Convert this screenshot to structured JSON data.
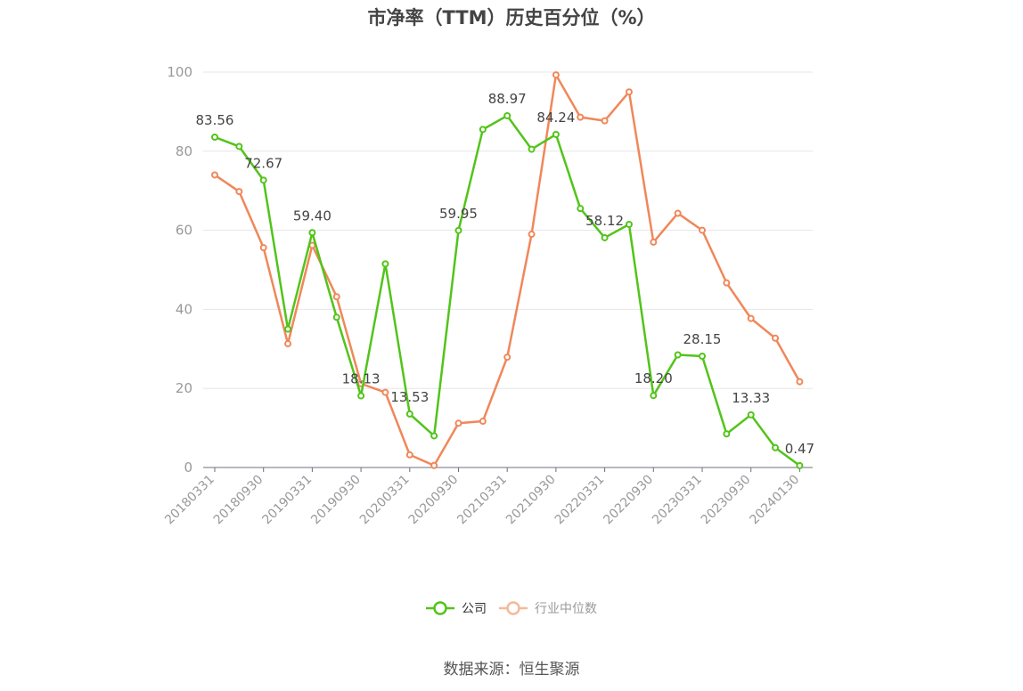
{
  "source": "数据来源：恒生聚源",
  "colors": {
    "company": "#52c41a",
    "industry": "#f0875a"
  },
  "chart_data": {
    "type": "line",
    "title": "市净率（TTM）历史百分位（%）",
    "ylim": [
      0,
      100
    ],
    "yticks": [
      0,
      20,
      40,
      60,
      80,
      100
    ],
    "grid": true,
    "legend_position": "bottom",
    "x_tick_labels": [
      "20180331",
      "20180930",
      "20190331",
      "20190930",
      "20200331",
      "20200930",
      "20210331",
      "20210930",
      "20220331",
      "20220930",
      "20230331",
      "20230930",
      "20240130"
    ],
    "x": [
      "20180331",
      "20180630",
      "20180930",
      "20181231",
      "20190331",
      "20190630",
      "20190930",
      "20191231",
      "20200331",
      "20200630",
      "20200930",
      "20201231",
      "20210331",
      "20210630",
      "20210930",
      "20211231",
      "20220331",
      "20220630",
      "20220930",
      "20221231",
      "20230331",
      "20230630",
      "20230930",
      "20231231",
      "20240130"
    ],
    "series": [
      {
        "name": "公司",
        "values": [
          83.56,
          81.2,
          72.67,
          35.0,
          59.4,
          38.0,
          18.13,
          51.5,
          13.53,
          8.0,
          59.95,
          85.5,
          88.97,
          80.5,
          84.24,
          65.5,
          58.12,
          61.5,
          18.2,
          28.5,
          28.15,
          8.5,
          13.33,
          5.0,
          0.47
        ],
        "labels": [
          "83.56",
          null,
          "72.67",
          null,
          "59.40",
          null,
          "18.13",
          null,
          "13.53",
          null,
          "59.95",
          null,
          "88.97",
          null,
          "84.24",
          null,
          "58.12",
          null,
          "18.20",
          null,
          "28.15",
          null,
          "13.33",
          null,
          "0.47"
        ]
      },
      {
        "name": "行业中位数",
        "values": [
          74.0,
          69.8,
          55.6,
          31.3,
          56.2,
          43.2,
          21.2,
          19.0,
          3.2,
          0.5,
          11.2,
          11.7,
          27.9,
          59.0,
          99.3,
          88.6,
          87.7,
          95.0,
          57.0,
          64.3,
          60.0,
          46.7,
          37.7,
          32.7,
          21.7
        ]
      }
    ]
  }
}
